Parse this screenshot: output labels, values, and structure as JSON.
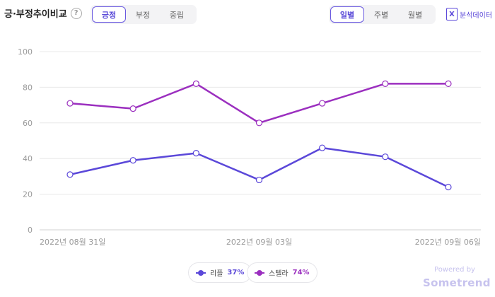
{
  "header": {
    "title": "긍·부정추이비교",
    "help_icon": "help-icon"
  },
  "sentiment_tabs": [
    {
      "label": "긍정",
      "active": true
    },
    {
      "label": "부정",
      "active": false
    },
    {
      "label": "중립",
      "active": false
    }
  ],
  "period_tabs": [
    {
      "label": "일별",
      "active": true
    },
    {
      "label": "주별",
      "active": false
    },
    {
      "label": "월별",
      "active": false
    }
  ],
  "export": {
    "label": "분석데이터",
    "icon": "excel-icon"
  },
  "chart_data": {
    "type": "line",
    "x": [
      "2022-08-31",
      "2022-09-01",
      "2022-09-02",
      "2022-09-03",
      "2022-09-04",
      "2022-09-05",
      "2022-09-06"
    ],
    "x_tick_labels": [
      {
        "index": 0,
        "label": "2022년 08월 31일"
      },
      {
        "index": 3,
        "label": "2022년 09월 03일"
      },
      {
        "index": 6,
        "label": "2022년 09월 06일"
      }
    ],
    "ylim": [
      0,
      100
    ],
    "yticks": [
      0,
      20,
      40,
      60,
      80,
      100
    ],
    "grid": true,
    "legend_position": "bottom-center",
    "series": [
      {
        "name": "리플",
        "percent": "37%",
        "color": "#5b48d9",
        "values": [
          31,
          39,
          43,
          28,
          46,
          41,
          24
        ]
      },
      {
        "name": "스텔라",
        "percent": "74%",
        "color": "#9b2fbf",
        "values": [
          71,
          68,
          82,
          60,
          71,
          82,
          82
        ]
      }
    ]
  },
  "branding": {
    "powered": "Powered by",
    "name": "Sometrend"
  }
}
